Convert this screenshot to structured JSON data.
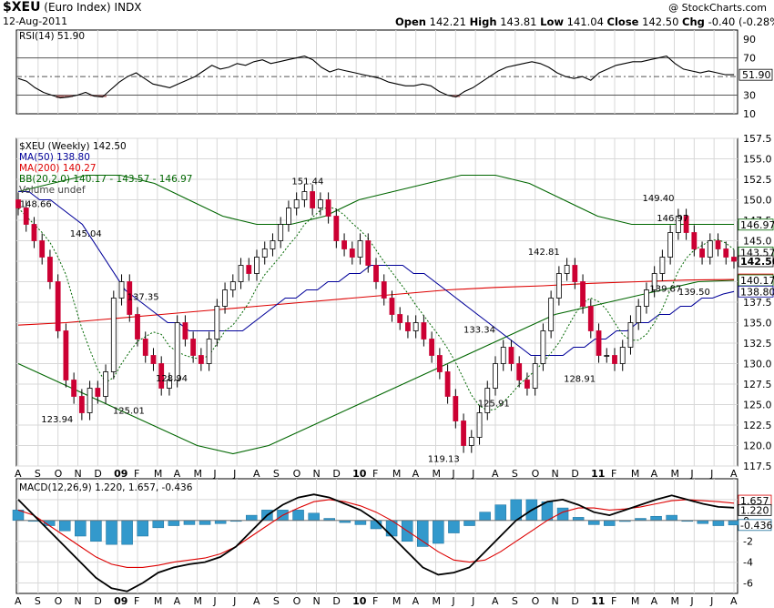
{
  "header": {
    "symbol": "$XEU",
    "name": "(Euro Index)",
    "exchange": "INDX",
    "date": "12-Aug-2011",
    "credit": "@ StockCharts.com",
    "open_label": "Open",
    "open": "142.21",
    "high_label": "High",
    "high": "143.81",
    "low_label": "Low",
    "low": "141.04",
    "close_label": "Close",
    "close": "142.50",
    "chg_label": "Chg",
    "chg": "-0.40 (-0.28%)"
  },
  "colors": {
    "up": "#ffffff",
    "down": "#cc0033",
    "ma50": "#000099",
    "ma200": "#dd0000",
    "bb": "#006600",
    "macd": "#000000",
    "signal": "#dd0000",
    "hist": "#3399cc",
    "rsi_fill": "#b07070",
    "grid": "#d8d8d8"
  },
  "chart_data": [
    {
      "panel": "rsi",
      "type": "line",
      "title": "RSI(14) 51.90",
      "ylim": [
        10,
        100
      ],
      "yticks": [
        "90",
        "70",
        "50",
        "30",
        "10"
      ],
      "ref_lines": [
        70,
        50,
        30
      ],
      "current": "51.90",
      "values": [
        48,
        45,
        38,
        33,
        30,
        27,
        28,
        30,
        33,
        29,
        28,
        36,
        44,
        50,
        54,
        48,
        42,
        40,
        38,
        42,
        46,
        50,
        56,
        62,
        58,
        60,
        64,
        62,
        66,
        68,
        64,
        66,
        68,
        70,
        72,
        68,
        60,
        55,
        58,
        56,
        54,
        52,
        50,
        48,
        44,
        42,
        40,
        40,
        42,
        40,
        34,
        30,
        28,
        34,
        38,
        44,
        50,
        56,
        60,
        62,
        64,
        66,
        64,
        60,
        54,
        50,
        48,
        50,
        46,
        54,
        58,
        62,
        64,
        66,
        66,
        68,
        70,
        72,
        64,
        58,
        56,
        54,
        56,
        54,
        52,
        52
      ]
    },
    {
      "panel": "price",
      "type": "candlestick",
      "legend": [
        "$XEU (Weekly) 142.50",
        "MA(50) 138.80",
        "MA(200) 140.27",
        "BB(20,2.0) 140.17 - 143.57 - 146.97",
        "Volume undef"
      ],
      "ylim": [
        117.5,
        157.5
      ],
      "yticks": [
        "157.5",
        "155.0",
        "152.5",
        "150.0",
        "147.5",
        "145.0",
        "142.5",
        "140.0",
        "137.5",
        "135.0",
        "132.5",
        "130.0",
        "127.5",
        "125.0",
        "122.5",
        "120.0",
        "117.5"
      ],
      "close": [
        149,
        147,
        145,
        143,
        140,
        134,
        128,
        126,
        124,
        127,
        126,
        129,
        138,
        140,
        136,
        133,
        131,
        130,
        127,
        128,
        135,
        133,
        131,
        130,
        133,
        137,
        139,
        140,
        142,
        141,
        143,
        144,
        145,
        147,
        149,
        150,
        151,
        149,
        150,
        148,
        145,
        144,
        143,
        145,
        142,
        140,
        138,
        136,
        135,
        134,
        135,
        133,
        131,
        129,
        126,
        123,
        120,
        121,
        124,
        127,
        130,
        132,
        130,
        128,
        127,
        130,
        134,
        138,
        141,
        142,
        140,
        137,
        134,
        131,
        131,
        130,
        132,
        135,
        137,
        139,
        141,
        143,
        146,
        148,
        146,
        144,
        143,
        145,
        144,
        143,
        142.5
      ],
      "price_labels": [
        "148.66",
        "145.04",
        "123.94",
        "137.35",
        "125.01",
        "128.94",
        "151.44",
        "119.13",
        "133.34",
        "125.91",
        "142.81",
        "128.91",
        "149.40",
        "146.97",
        "139.87",
        "139.50"
      ],
      "right_values": [
        "146.97",
        "143.57",
        "142.50",
        "140.27",
        "140.17",
        "138.80"
      ],
      "ma50": [
        151,
        151,
        150,
        150,
        149,
        148,
        147,
        145,
        143,
        141,
        139,
        138,
        137,
        136,
        135,
        135,
        134,
        134,
        134,
        134,
        134,
        134,
        135,
        136,
        137,
        138,
        138,
        139,
        139,
        140,
        140,
        141,
        141,
        142,
        142,
        142,
        142,
        141,
        141,
        140,
        139,
        138,
        137,
        136,
        135,
        134,
        133,
        132,
        131,
        131,
        131,
        131,
        132,
        132,
        133,
        133,
        134,
        134,
        135,
        135,
        136,
        136,
        137,
        137,
        138,
        138,
        138.5,
        138.8
      ],
      "ma200": [
        134.7,
        135,
        135.5,
        136,
        136.5,
        137,
        137.5,
        138,
        138.5,
        139,
        139.3,
        139.5,
        139.8,
        140,
        140.2,
        140.27
      ],
      "bb_upper": [
        151,
        152,
        153,
        153,
        152,
        150,
        148,
        147,
        147,
        148,
        150,
        151,
        152,
        153,
        153,
        152,
        150,
        148,
        147,
        147,
        147,
        147
      ],
      "bb_lower": [
        130,
        128,
        126,
        124,
        122,
        120,
        119,
        120,
        122,
        124,
        126,
        128,
        130,
        132,
        134,
        136,
        137,
        138,
        139,
        140,
        140.17
      ]
    },
    {
      "panel": "macd",
      "type": "line",
      "title": "MACD(12,26,9) 1.220, 1.657, -0.436",
      "ylim": [
        -7,
        4
      ],
      "yticks": [
        "2",
        "0",
        "-2",
        "-4",
        "-6"
      ],
      "right_values": [
        "1.657",
        "1.220",
        "-0.436"
      ],
      "macd": [
        2,
        0.5,
        -1,
        -2.5,
        -4,
        -5.5,
        -6.5,
        -6.8,
        -6,
        -5,
        -4.5,
        -4.2,
        -4,
        -3.5,
        -2.5,
        -1,
        0.5,
        1.5,
        2.2,
        2.5,
        2.2,
        1.6,
        1,
        0,
        -1.5,
        -3,
        -4.5,
        -5.2,
        -5,
        -4.5,
        -3,
        -1.5,
        0,
        1,
        1.8,
        2,
        1.5,
        0.8,
        0.5,
        1,
        1.5,
        2,
        2.4,
        2,
        1.6,
        1.3,
        1.22
      ],
      "signal": [
        1,
        0.5,
        -0.5,
        -1.5,
        -2.5,
        -3.5,
        -4.2,
        -4.5,
        -4.5,
        -4.3,
        -4,
        -3.8,
        -3.6,
        -3.2,
        -2.5,
        -1.5,
        -0.5,
        0.5,
        1.2,
        1.8,
        2,
        1.8,
        1.4,
        0.8,
        0,
        -1,
        -2,
        -3,
        -3.8,
        -4,
        -3.8,
        -3,
        -2,
        -1,
        0,
        0.8,
        1.2,
        1.2,
        1,
        1.1,
        1.3,
        1.6,
        1.9,
        2,
        1.9,
        1.8,
        1.657
      ],
      "histogram": [
        1,
        0,
        -0.5,
        -1,
        -1.5,
        -2,
        -2.3,
        -2.3,
        -1.5,
        -0.7,
        -0.5,
        -0.4,
        -0.4,
        -0.3,
        0,
        0.5,
        1,
        1,
        1,
        0.7,
        0.2,
        -0.2,
        -0.4,
        -0.8,
        -1.5,
        -2,
        -2.5,
        -2.2,
        -1.2,
        -0.5,
        0.8,
        1.5,
        2,
        2,
        1.8,
        1.2,
        0.3,
        -0.4,
        -0.5,
        -0.1,
        0.2,
        0.4,
        0.5,
        0,
        -0.3,
        -0.5,
        -0.436
      ]
    }
  ],
  "x_axis": {
    "labels": [
      "A",
      "S",
      "O",
      "N",
      "D",
      "09",
      "F",
      "M",
      "A",
      "M",
      "J",
      "J",
      "A",
      "S",
      "O",
      "N",
      "D",
      "10",
      "F",
      "M",
      "A",
      "M",
      "J",
      "J",
      "A",
      "S",
      "O",
      "N",
      "D",
      "11",
      "F",
      "M",
      "A",
      "M",
      "J",
      "J",
      "A"
    ]
  }
}
